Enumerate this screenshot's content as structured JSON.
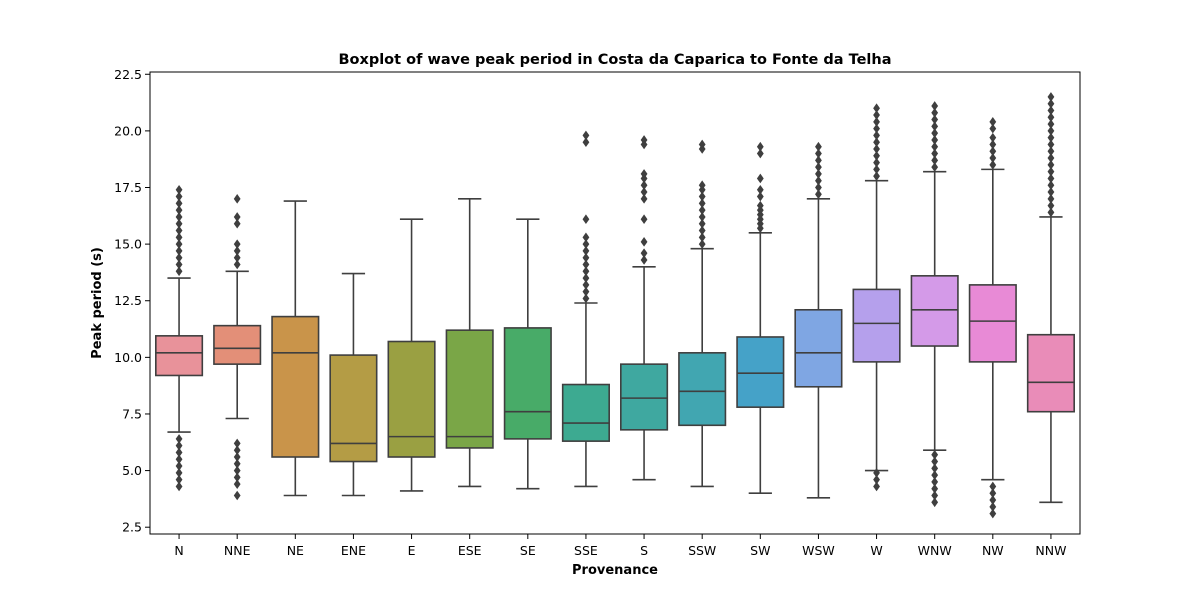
{
  "chart_data": {
    "type": "box",
    "title": "Boxplot of wave peak period in Costa da Caparica to Fonte da Telha",
    "xlabel": "Provenance",
    "ylabel": "Peak period (s)",
    "ylim": [
      2.2,
      22.6
    ],
    "yticks": [
      "2.5",
      "5.0",
      "7.5",
      "10.0",
      "12.5",
      "15.0",
      "17.5",
      "20.0",
      "22.5"
    ],
    "grid": false,
    "categories": [
      "N",
      "NNE",
      "NE",
      "ENE",
      "E",
      "ESE",
      "SE",
      "SSE",
      "S",
      "SSW",
      "SW",
      "WSW",
      "W",
      "WNW",
      "NW",
      "NNW"
    ],
    "colors": [
      "#e8929a",
      "#e38f78",
      "#c9944a",
      "#b49c45",
      "#9aa042",
      "#7aa647",
      "#48ab68",
      "#3daa91",
      "#3fa8a0",
      "#41a6b1",
      "#45a2c8",
      "#7fa6e3",
      "#b5a0ec",
      "#d49ae8",
      "#e88ad6",
      "#e98cb8"
    ],
    "boxes": [
      {
        "q1": 9.2,
        "median": 10.2,
        "q3": 10.95,
        "whisker_low": 6.7,
        "whisker_high": 13.5,
        "outliers": [
          4.3,
          4.6,
          4.9,
          5.2,
          5.5,
          5.8,
          6.1,
          6.4,
          13.8,
          14.1,
          14.4,
          14.7,
          15.0,
          15.3,
          15.6,
          15.9,
          16.2,
          16.5,
          16.8,
          17.1,
          17.4
        ]
      },
      {
        "q1": 9.7,
        "median": 10.4,
        "q3": 11.4,
        "whisker_low": 7.3,
        "whisker_high": 13.8,
        "outliers": [
          3.9,
          4.4,
          4.7,
          5.0,
          5.3,
          5.6,
          5.9,
          6.2,
          14.1,
          14.4,
          14.7,
          15.0,
          15.9,
          16.2,
          17.0
        ]
      },
      {
        "q1": 5.6,
        "median": 10.2,
        "q3": 11.8,
        "whisker_low": 3.9,
        "whisker_high": 16.9,
        "outliers": []
      },
      {
        "q1": 5.4,
        "median": 6.2,
        "q3": 10.1,
        "whisker_low": 3.9,
        "whisker_high": 13.7,
        "outliers": []
      },
      {
        "q1": 5.6,
        "median": 6.5,
        "q3": 10.7,
        "whisker_low": 4.1,
        "whisker_high": 16.1,
        "outliers": []
      },
      {
        "q1": 6.0,
        "median": 6.5,
        "q3": 11.2,
        "whisker_low": 4.3,
        "whisker_high": 17.0,
        "outliers": []
      },
      {
        "q1": 6.4,
        "median": 7.6,
        "q3": 11.3,
        "whisker_low": 4.2,
        "whisker_high": 16.1,
        "outliers": []
      },
      {
        "q1": 6.3,
        "median": 7.1,
        "q3": 8.8,
        "whisker_low": 4.3,
        "whisker_high": 12.4,
        "outliers": [
          12.6,
          12.9,
          13.2,
          13.5,
          13.8,
          14.1,
          14.4,
          14.7,
          15.0,
          15.3,
          16.1,
          19.5,
          19.8
        ]
      },
      {
        "q1": 6.8,
        "median": 8.2,
        "q3": 9.7,
        "whisker_low": 4.6,
        "whisker_high": 14.0,
        "outliers": [
          14.3,
          14.6,
          15.1,
          16.1,
          17.0,
          17.3,
          17.6,
          17.9,
          18.1,
          19.4,
          19.6
        ]
      },
      {
        "q1": 7.0,
        "median": 8.5,
        "q3": 10.2,
        "whisker_low": 4.3,
        "whisker_high": 14.8,
        "outliers": [
          15.0,
          15.3,
          15.6,
          15.9,
          16.2,
          16.5,
          16.8,
          17.1,
          17.4,
          17.6,
          19.2,
          19.4
        ]
      },
      {
        "q1": 7.8,
        "median": 9.3,
        "q3": 10.9,
        "whisker_low": 4.0,
        "whisker_high": 15.5,
        "outliers": [
          15.7,
          15.9,
          16.1,
          16.3,
          16.5,
          16.7,
          17.1,
          17.4,
          17.9,
          19.0,
          19.3
        ]
      },
      {
        "q1": 8.7,
        "median": 10.2,
        "q3": 12.1,
        "whisker_low": 3.8,
        "whisker_high": 17.0,
        "outliers": [
          17.2,
          17.5,
          17.8,
          18.1,
          18.4,
          18.7,
          19.0,
          19.3
        ]
      },
      {
        "q1": 9.8,
        "median": 11.5,
        "q3": 13.0,
        "whisker_low": 5.0,
        "whisker_high": 17.8,
        "outliers": [
          4.3,
          4.6,
          4.9,
          18.0,
          18.3,
          18.6,
          18.9,
          19.2,
          19.5,
          19.8,
          20.1,
          20.4,
          20.7,
          21.0
        ]
      },
      {
        "q1": 10.5,
        "median": 12.1,
        "q3": 13.6,
        "whisker_low": 5.9,
        "whisker_high": 18.2,
        "outliers": [
          3.6,
          3.9,
          4.2,
          4.5,
          4.8,
          5.1,
          5.4,
          5.7,
          18.4,
          18.7,
          19.0,
          19.3,
          19.6,
          19.9,
          20.2,
          20.5,
          20.8,
          21.1
        ]
      },
      {
        "q1": 9.8,
        "median": 11.6,
        "q3": 13.2,
        "whisker_low": 4.6,
        "whisker_high": 18.3,
        "outliers": [
          3.1,
          3.4,
          3.7,
          4.0,
          4.3,
          18.5,
          18.8,
          19.1,
          19.4,
          19.7,
          20.1,
          20.4
        ]
      },
      {
        "q1": 7.6,
        "median": 8.9,
        "q3": 11.0,
        "whisker_low": 3.6,
        "whisker_high": 16.2,
        "outliers": [
          16.4,
          16.7,
          17.0,
          17.3,
          17.6,
          17.9,
          18.2,
          18.5,
          18.8,
          19.1,
          19.4,
          19.7,
          20.0,
          20.3,
          20.6,
          20.9,
          21.2,
          21.5
        ]
      }
    ]
  }
}
